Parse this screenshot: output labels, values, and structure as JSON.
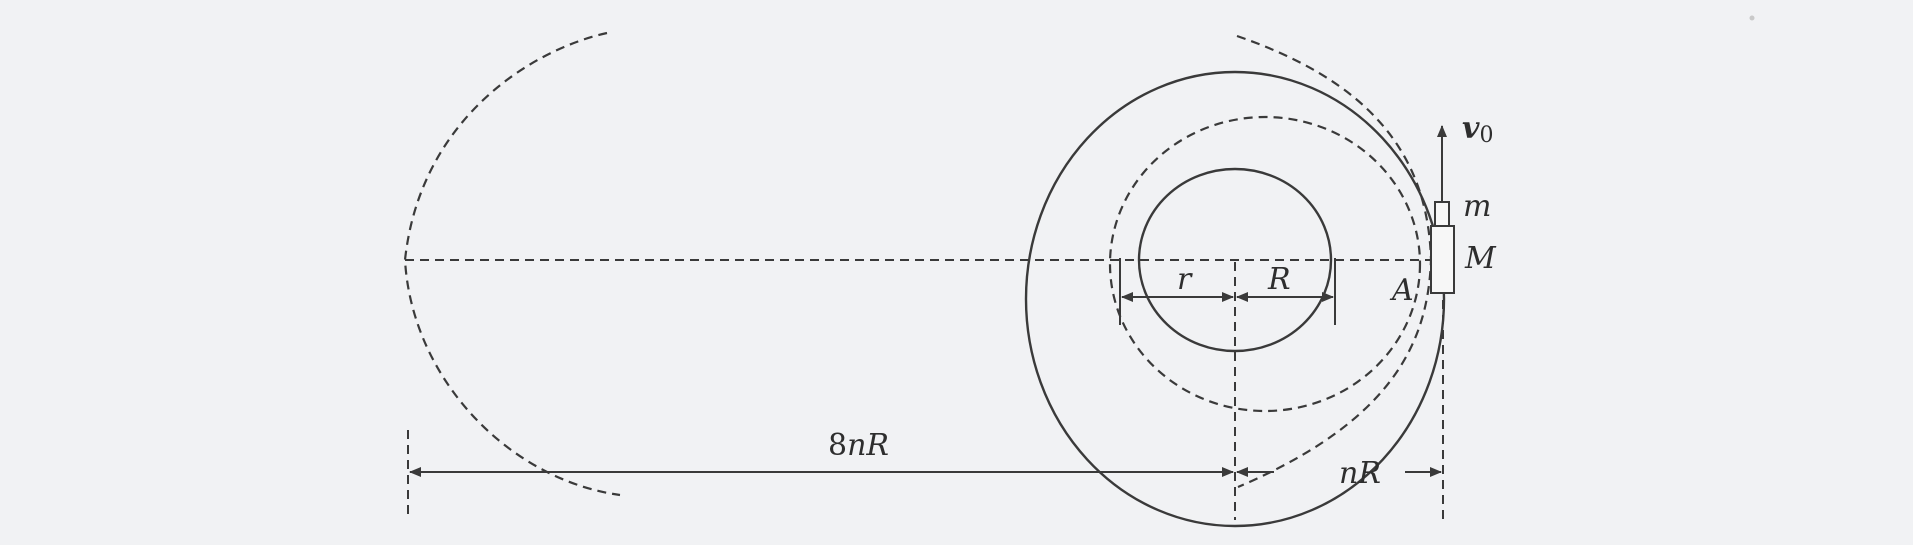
{
  "labels": {
    "v0_symbol": "v",
    "v0_subscript": "0",
    "m": "m",
    "M": "M",
    "A": "A",
    "r": "r",
    "R": "R",
    "eight": "8",
    "nR": "nR",
    "nR_right": "nR"
  },
  "colors": {
    "background": "#f1f2f4",
    "ink": "#3a3a3a"
  }
}
